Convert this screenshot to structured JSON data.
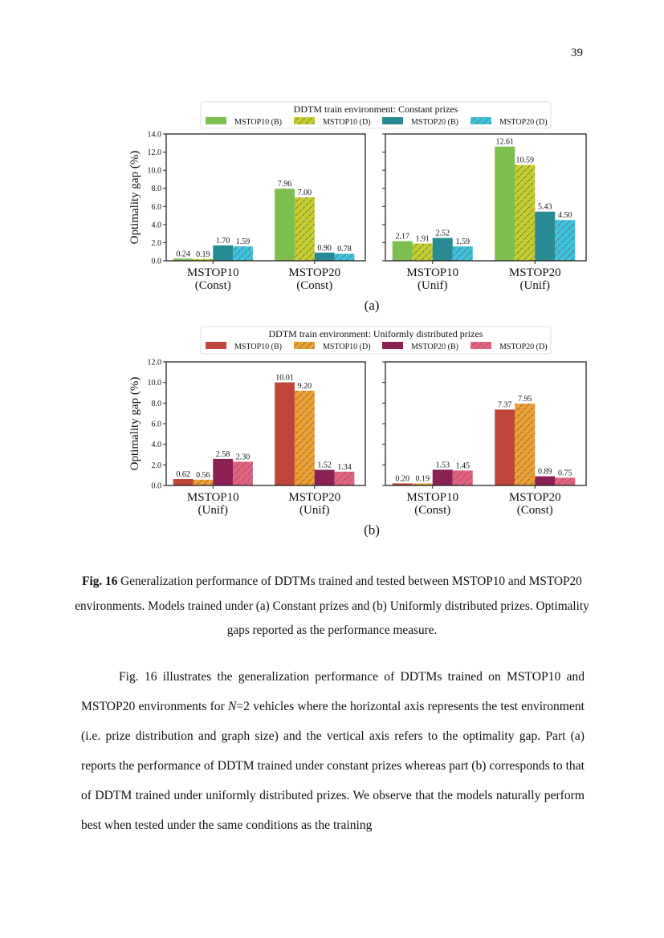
{
  "page_number": "39",
  "figure": {
    "caption_label": "Fig. 16",
    "caption_text": " Generalization performance of DDTMs trained and tested between MSTOP10 and MSTOP20 environments. Models trained under (a) Constant prizes and (b) Uniformly distributed prizes. Optimality gaps reported as the performance measure."
  },
  "body": {
    "p1_a": "Fig. 16 illustrates the generalization performance of DDTMs trained on MSTOP10 and MSTOP20 environments for ",
    "p1_n": "N",
    "p1_b": "=2 vehicles where the horizontal axis represents the test environment (i.e. prize distribution and graph size) and the vertical axis refers to the optimality gap. Part (a) reports the performance of DDTM trained under constant prizes whereas part (b) corresponds to that of DDTM trained under uniformly distributed prizes. We observe that the models naturally perform best when tested under the same conditions as the training"
  },
  "chart_data": [
    {
      "type": "bar",
      "panel_label": "(a)",
      "legend_title": "DDTM train environment: Constant prizes",
      "legend_placement": "top-center",
      "ylabel": "Optimality gap (%)",
      "ylim": [
        0,
        14
      ],
      "yticks": [
        "0.0",
        "2.0",
        "4.0",
        "6.0",
        "8.0",
        "10.0",
        "12.0",
        "14.0"
      ],
      "series_styles": [
        {
          "name": "MSTOP10 (B)",
          "color": "#7dbf4e",
          "hatched": false
        },
        {
          "name": "MSTOP10 (D)",
          "color": "#c6cf2a",
          "hatched": true
        },
        {
          "name": "MSTOP20 (B)",
          "color": "#288a92",
          "hatched": false
        },
        {
          "name": "MSTOP20 (D)",
          "color": "#3cc3df",
          "hatched": true
        }
      ],
      "subplots": [
        {
          "categories": [
            "MSTOP10\n(Const)",
            "MSTOP20\n(Const)"
          ],
          "values": [
            [
              0.24,
              0.19,
              1.7,
              1.59
            ],
            [
              7.96,
              7.0,
              0.9,
              0.78
            ]
          ],
          "labels": [
            [
              "0.24",
              "0.19",
              "1.70",
              "1.59"
            ],
            [
              "7.96",
              "7.00",
              "0.90",
              "0.78"
            ]
          ]
        },
        {
          "categories": [
            "MSTOP10\n(Unif)",
            "MSTOP20\n(Unif)"
          ],
          "values": [
            [
              2.17,
              1.91,
              2.52,
              1.59
            ],
            [
              12.61,
              10.59,
              5.43,
              4.5
            ]
          ],
          "labels": [
            [
              "2.17",
              "1.91",
              "2.52",
              "1.59"
            ],
            [
              "12.61",
              "10.59",
              "5.43",
              "4.50"
            ]
          ]
        }
      ]
    },
    {
      "type": "bar",
      "panel_label": "(b)",
      "legend_title": "DDTM train environment: Uniformly distributed prizes",
      "legend_placement": "top-center",
      "ylabel": "Optimality gap (%)",
      "ylim": [
        0,
        12
      ],
      "yticks": [
        "0.0",
        "2.0",
        "4.0",
        "6.0",
        "8.0",
        "10.0",
        "12.0"
      ],
      "series_styles": [
        {
          "name": "MSTOP10 (B)",
          "color": "#c0453a",
          "hatched": false
        },
        {
          "name": "MSTOP10 (D)",
          "color": "#f0a02e",
          "hatched": true
        },
        {
          "name": "MSTOP20 (B)",
          "color": "#8a2154",
          "hatched": false
        },
        {
          "name": "MSTOP20 (D)",
          "color": "#e8607f",
          "hatched": true
        }
      ],
      "subplots": [
        {
          "categories": [
            "MSTOP10\n(Unif)",
            "MSTOP20\n(Unif)"
          ],
          "values": [
            [
              0.62,
              0.56,
              2.58,
              2.3
            ],
            [
              10.01,
              9.2,
              1.52,
              1.34
            ]
          ],
          "labels": [
            [
              "0.62",
              "0.56",
              "2.58",
              "2.30"
            ],
            [
              "10.01",
              "9.20",
              "1.52",
              "1.34"
            ]
          ]
        },
        {
          "categories": [
            "MSTOP10\n(Const)",
            "MSTOP20\n(Const)"
          ],
          "values": [
            [
              0.2,
              0.19,
              1.53,
              1.45
            ],
            [
              7.37,
              7.95,
              0.89,
              0.75
            ]
          ],
          "labels": [
            [
              "0.20",
              "0.19",
              "1.53",
              "1.45"
            ],
            [
              "7.37",
              "7.95",
              "0.89",
              "0.75"
            ]
          ]
        }
      ]
    }
  ]
}
